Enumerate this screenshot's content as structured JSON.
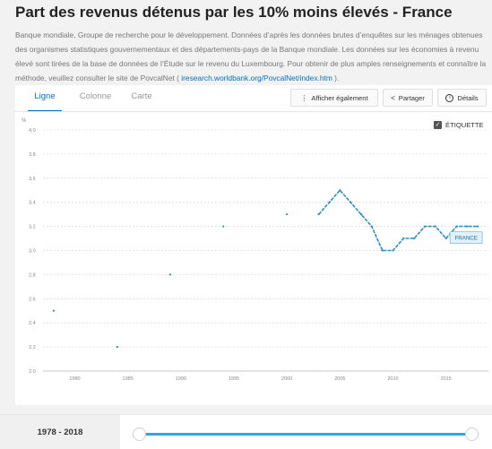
{
  "title": "Part des revenus détenus par les 10% moins élevés - France",
  "description": {
    "text": "Banque mondiale, Groupe de recherche pour le développement. Données d’après les données brutes d’enquêtes sur les ménages obtenues des organismes statistiques gouvernementaux et des départements-pays de la Banque mondiale. Les données sur les économies à revenu élevé sont tirées de la base de données de l’Étude sur le revenu du Luxembourg. Pour obtenir de plus amples renseignements et connaître la méthode, veuillez consulter le site de PovcalNet (",
    "link": "iresearch.worldbank.org/PovcalNet/index.htm",
    "suffix": ")."
  },
  "tabs": [
    {
      "label": "Ligne",
      "active": true
    },
    {
      "label": "Colonne",
      "active": false
    },
    {
      "label": "Carte",
      "active": false
    }
  ],
  "toolbar": {
    "show_also": "Afficher également",
    "share": "Partager",
    "details": "Détails"
  },
  "label_toggle": {
    "label": "ÉTIQUETTE",
    "checked": true
  },
  "chart_data": {
    "type": "line",
    "y_unit": "%",
    "ylim": [
      2.0,
      4.0
    ],
    "y_ticks": [
      "2,0",
      "2,2",
      "2,4",
      "2,6",
      "2,8",
      "3,0",
      "3,2",
      "3,4",
      "3,6",
      "3,8",
      "4,0"
    ],
    "xlim": [
      1977,
      2019
    ],
    "x_ticks": [
      "1980",
      "1985",
      "1990",
      "1995",
      "2000",
      "2005",
      "2010",
      "2015"
    ],
    "grid": true,
    "line_color": "#2b8fc4",
    "series": [
      {
        "name": "FRANCE",
        "points": [
          [
            1978,
            2.5
          ],
          [
            1984,
            2.2
          ],
          [
            1989,
            2.8
          ],
          [
            1994,
            3.2
          ],
          [
            2000,
            3.3
          ],
          [
            2003,
            3.3
          ],
          [
            2004,
            3.4
          ],
          [
            2005,
            3.5
          ],
          [
            2006,
            3.4
          ],
          [
            2007,
            3.3
          ],
          [
            2008,
            3.2
          ],
          [
            2009,
            3.0
          ],
          [
            2010,
            3.0
          ],
          [
            2011,
            3.1
          ],
          [
            2012,
            3.1
          ],
          [
            2013,
            3.2
          ],
          [
            2014,
            3.2
          ],
          [
            2015,
            3.1
          ],
          [
            2016,
            3.2
          ],
          [
            2017,
            3.2
          ],
          [
            2018,
            3.2
          ]
        ],
        "connected_from": 2003
      }
    ]
  },
  "range": {
    "label": "1978 - 2018"
  }
}
